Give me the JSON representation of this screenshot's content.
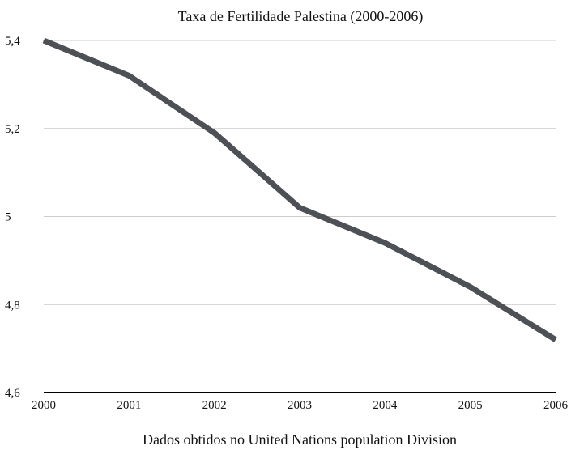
{
  "chart_data": {
    "type": "line",
    "title": "Taxa de Fertilidade Palestina (2000-2006)",
    "xlabel": "Dados obtidos no United Nations population Division",
    "ylabel": "",
    "categories": [
      "2000",
      "2001",
      "2002",
      "2003",
      "2004",
      "2005",
      "2006"
    ],
    "series": [
      {
        "values": [
          5.4,
          5.32,
          5.19,
          5.02,
          4.94,
          4.84,
          4.72
        ]
      }
    ],
    "ylim": [
      4.6,
      5.4
    ],
    "yticks": [
      {
        "value": 5.4,
        "label": "5,4"
      },
      {
        "value": 5.2,
        "label": "5,2"
      },
      {
        "value": 5.0,
        "label": "5"
      },
      {
        "value": 4.8,
        "label": "4,8"
      },
      {
        "value": 4.6,
        "label": "4,6"
      }
    ],
    "grid": true,
    "legend": "none",
    "colors": {
      "line": "#4d5054",
      "grid": "#cccccc",
      "axis": "#000000"
    }
  }
}
